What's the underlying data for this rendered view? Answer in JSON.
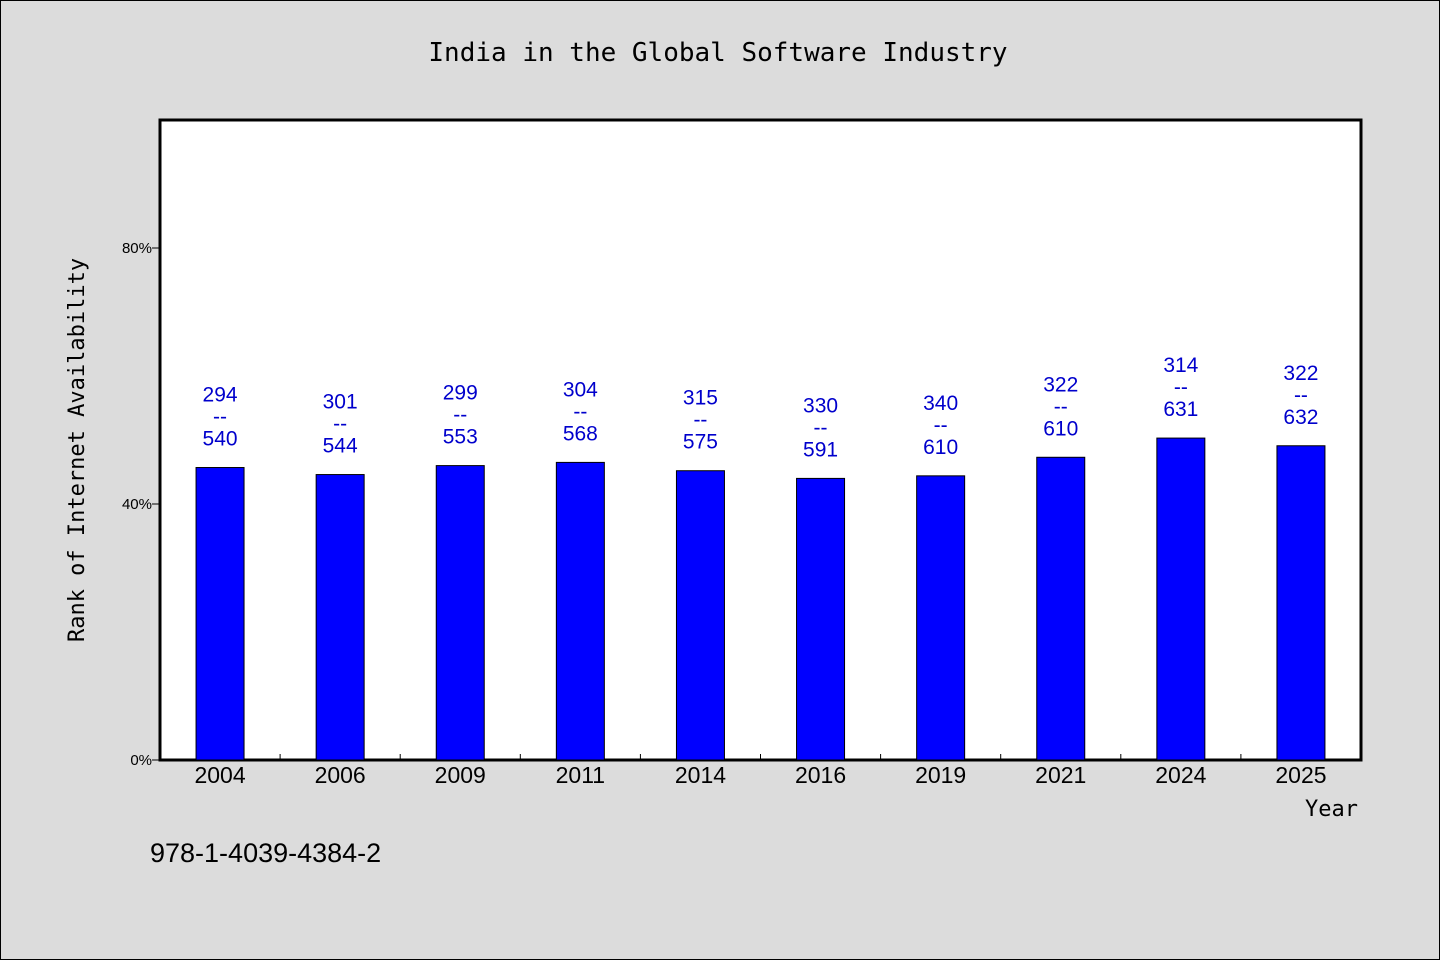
{
  "chart_data": {
    "type": "bar",
    "title": "India in the Global Software Industry",
    "xlabel": "Year",
    "ylabel": "Rank of Internet Availability",
    "categories": [
      "2004",
      "2006",
      "2009",
      "2011",
      "2014",
      "2016",
      "2019",
      "2021",
      "2024",
      "2025"
    ],
    "values": [
      45.7,
      44.6,
      46.0,
      46.5,
      45.2,
      44.0,
      44.4,
      47.3,
      50.3,
      49.1
    ],
    "value_unit": "%",
    "ylim": [
      0,
      100
    ],
    "yticks": [
      {
        "value": 0,
        "label": "0%"
      },
      {
        "value": 40,
        "label": "40%"
      },
      {
        "value": 80,
        "label": "80%"
      }
    ],
    "data_labels": [
      {
        "top": "294",
        "sep": "--",
        "bottom": "540"
      },
      {
        "top": "301",
        "sep": "--",
        "bottom": "544"
      },
      {
        "top": "299",
        "sep": "--",
        "bottom": "553"
      },
      {
        "top": "304",
        "sep": "--",
        "bottom": "568"
      },
      {
        "top": "315",
        "sep": "--",
        "bottom": "575"
      },
      {
        "top": "330",
        "sep": "--",
        "bottom": "591"
      },
      {
        "top": "340",
        "sep": "--",
        "bottom": "610"
      },
      {
        "top": "322",
        "sep": "--",
        "bottom": "610"
      },
      {
        "top": "314",
        "sep": "--",
        "bottom": "631"
      },
      {
        "top": "322",
        "sep": "--",
        "bottom": "632"
      }
    ],
    "bar_color": "#0000ff",
    "label_color": "#0000cc",
    "plot_background": "#ffffff",
    "page_background": "#dcdcdc",
    "grid": false,
    "legend": "none"
  },
  "footer": {
    "isbn": "978-1-4039-4384-2"
  }
}
